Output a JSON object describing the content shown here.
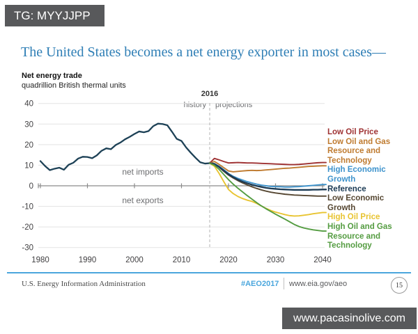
{
  "badges": {
    "top_left": "TG: MYYJJPP",
    "bottom_right": "www.pacasinolive.com",
    "background": "#58595b"
  },
  "title": "The United States becomes a net energy exporter in most cases—",
  "chart_header": {
    "title": "Net energy trade",
    "subtitle": "quadrillion British thermal units"
  },
  "annotations": {
    "divider_year": "2016",
    "history_label": "history",
    "projections_label": "projections",
    "above_zero_label": "net imports",
    "below_zero_label": "net exports"
  },
  "footer": {
    "org": "U.S. Energy Information Administration",
    "hashtag": "#AEO2017",
    "hashtag_color": "#4aa6dd",
    "url": "www.eia.gov/aeo",
    "page_number": "15",
    "rule_color": "#4aa6dd"
  },
  "chart_data": {
    "type": "line",
    "title": "Net energy trade",
    "ylabel": "quadrillion British thermal units",
    "xlim": [
      1980,
      2040
    ],
    "ylim": [
      -30,
      40
    ],
    "yticks": [
      40,
      30,
      20,
      10,
      0,
      -10,
      -20,
      -30
    ],
    "xticks": [
      1980,
      1990,
      2000,
      2010,
      2020,
      2030,
      2040
    ],
    "divider_year": 2016,
    "grid": "horizontal",
    "legend_position": "right",
    "history": {
      "name": "history",
      "color": "#1d4156",
      "start_year": 1980,
      "values": [
        12.0,
        9.6,
        7.6,
        8.3,
        8.8,
        7.8,
        10.2,
        11.2,
        13.2,
        14.1,
        14.0,
        13.4,
        14.8,
        17.0,
        18.2,
        17.8,
        19.8,
        21.0,
        22.6,
        23.8,
        25.2,
        26.4,
        26.0,
        26.6,
        29.0,
        30.2,
        30.0,
        29.4,
        26.2,
        22.8,
        21.8,
        18.6,
        16.0,
        13.6,
        11.4,
        10.8,
        11.0
      ]
    },
    "series": [
      {
        "name": "Low Oil Price",
        "color": "#9e3132",
        "start_year": 2016,
        "values": [
          11.0,
          13.3,
          12.6,
          11.8,
          11.1,
          11.2,
          11.3,
          11.2,
          11.1,
          11.1,
          11.0,
          10.9,
          10.8,
          10.7,
          10.6,
          10.5,
          10.4,
          10.3,
          10.3,
          10.4,
          10.6,
          10.8,
          11.0,
          11.2,
          11.3
        ]
      },
      {
        "name": "Low Oil and Gas Resource and Technology",
        "color": "#bf7b30",
        "start_year": 2016,
        "values": [
          11.0,
          11.8,
          10.4,
          8.8,
          7.2,
          6.8,
          7.0,
          7.2,
          7.4,
          7.5,
          7.4,
          7.5,
          7.7,
          7.9,
          8.1,
          8.3,
          8.5,
          8.6,
          8.8,
          9.0,
          9.2,
          9.4,
          9.5,
          9.6,
          9.7
        ]
      },
      {
        "name": "High Economic Growth",
        "color": "#3e93cc",
        "start_year": 2016,
        "values": [
          11.0,
          10.8,
          9.5,
          7.8,
          6.0,
          4.6,
          3.6,
          2.8,
          2.0,
          1.4,
          0.8,
          0.3,
          0.0,
          -0.3,
          -0.4,
          -0.5,
          -0.6,
          -0.6,
          -0.5,
          -0.4,
          -0.2,
          0.0,
          0.2,
          0.4,
          0.6
        ]
      },
      {
        "name": "Reference",
        "color": "#1b3a54",
        "start_year": 2016,
        "values": [
          11.0,
          10.6,
          9.2,
          7.4,
          5.6,
          4.2,
          3.0,
          2.0,
          1.2,
          0.5,
          -0.1,
          -0.6,
          -1.0,
          -1.3,
          -1.5,
          -1.7,
          -1.8,
          -1.9,
          -2.0,
          -2.0,
          -2.0,
          -2.0,
          -1.9,
          -1.9,
          -1.8
        ]
      },
      {
        "name": "Low Economic Growth",
        "color": "#564732",
        "start_year": 2016,
        "values": [
          11.0,
          10.5,
          9.0,
          7.0,
          5.2,
          3.8,
          2.5,
          1.4,
          0.4,
          -0.5,
          -1.3,
          -2.0,
          -2.6,
          -3.1,
          -3.5,
          -3.8,
          -4.1,
          -4.3,
          -4.5,
          -4.6,
          -4.7,
          -4.8,
          -4.9,
          -5.0,
          -5.0
        ]
      },
      {
        "name": "High Oil Price",
        "color": "#e8c431",
        "start_year": 2016,
        "values": [
          11.0,
          9.5,
          6.0,
          2.0,
          -1.8,
          -3.8,
          -5.2,
          -6.2,
          -7.0,
          -7.6,
          -8.6,
          -9.8,
          -11.0,
          -12.0,
          -12.8,
          -13.4,
          -14.0,
          -14.5,
          -14.7,
          -14.6,
          -14.3,
          -14.0,
          -13.6,
          -13.3,
          -13.0
        ]
      },
      {
        "name": "High Oil and Gas Resource and Technology",
        "color": "#549c41",
        "start_year": 2016,
        "values": [
          11.0,
          10.0,
          8.0,
          5.5,
          3.0,
          0.8,
          -1.2,
          -3.0,
          -4.8,
          -6.5,
          -8.2,
          -9.8,
          -11.2,
          -12.5,
          -13.8,
          -15.0,
          -16.2,
          -17.5,
          -18.8,
          -19.8,
          -20.5,
          -21.0,
          -21.4,
          -21.7,
          -22.0
        ]
      }
    ]
  }
}
